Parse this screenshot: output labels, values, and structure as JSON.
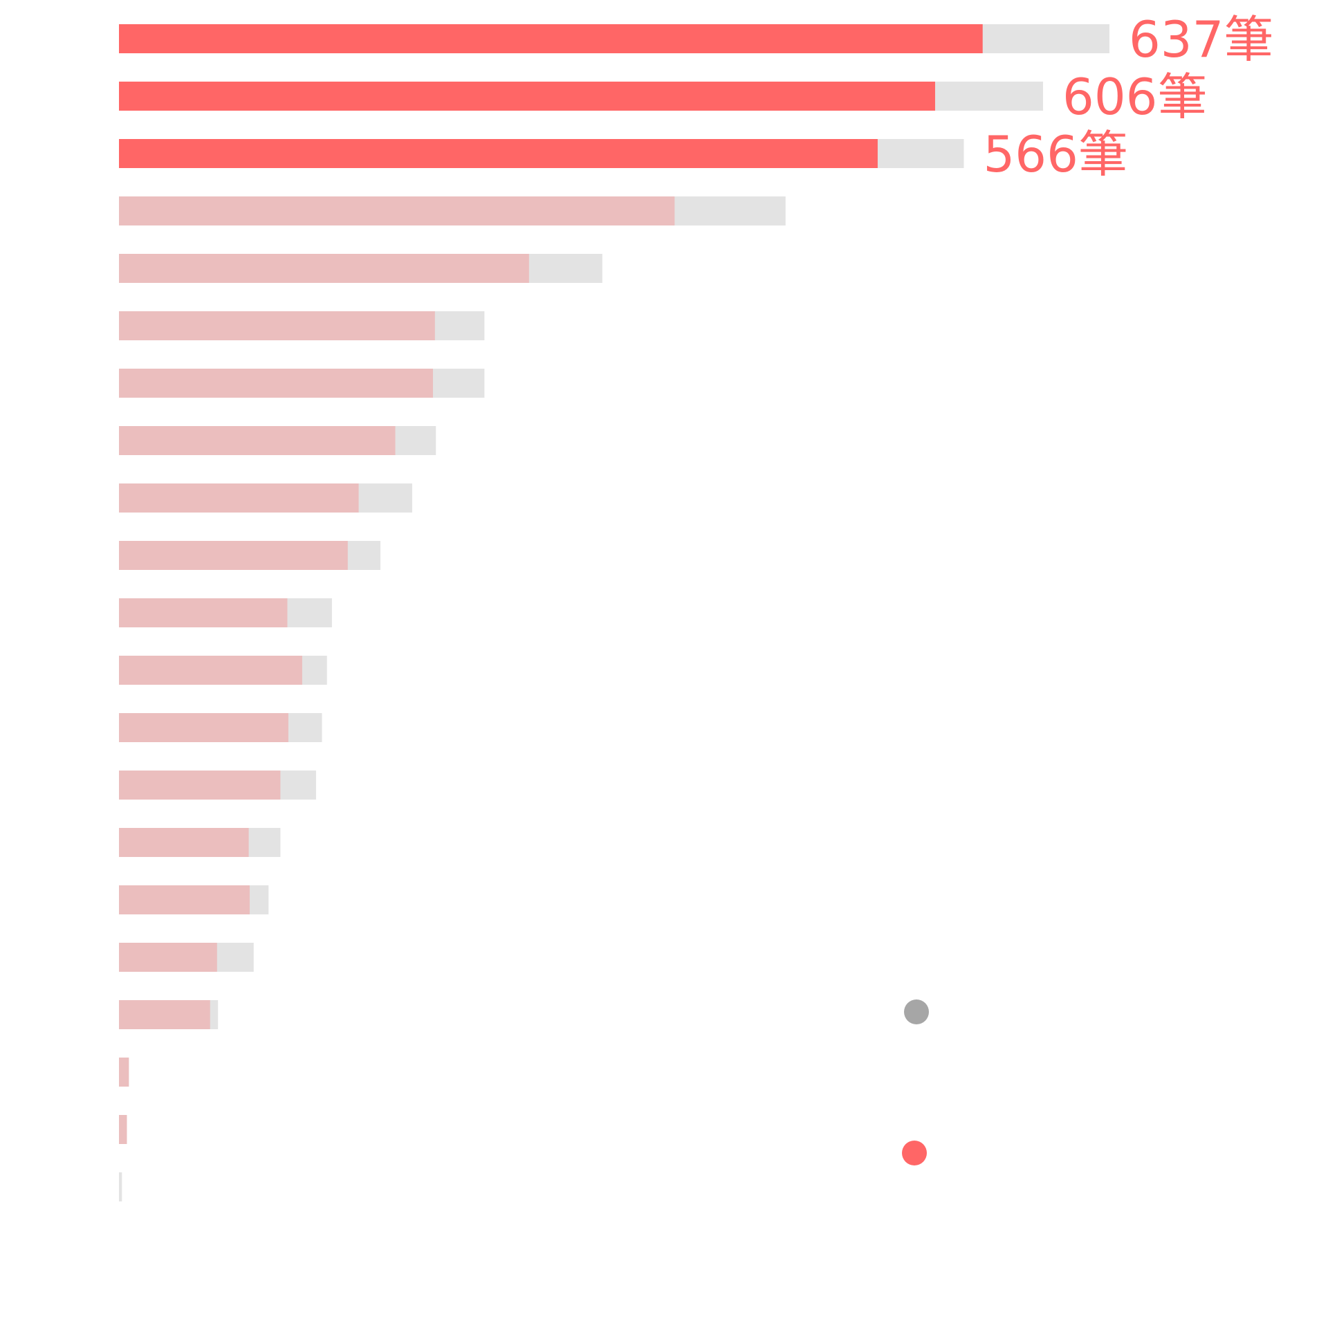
{
  "chart_data": {
    "type": "bar",
    "orientation": "horizontal",
    "stacked_overlay": true,
    "xlim": [
      0,
      1000
    ],
    "grid": false,
    "categories": [
      "",
      "",
      "",
      "",
      "",
      "",
      "",
      "",
      "",
      "",
      "",
      "",
      "",
      "",
      "",
      "",
      "",
      "",
      "",
      "",
      ""
    ],
    "series": [
      {
        "color": "#e3e3e3",
        "values": [
          1000,
          933,
          853,
          673,
          488,
          369,
          369,
          320,
          296,
          264,
          215,
          210,
          205,
          199,
          163,
          151,
          136,
          100,
          10,
          8,
          3
        ]
      },
      {
        "colors": [
          "#ff6666",
          "#ff6666",
          "#ff6666",
          "#ebbebe",
          "#ebbebe",
          "#ebbebe",
          "#ebbebe",
          "#ebbebe",
          "#ebbebe",
          "#ebbebe",
          "#ebbebe",
          "#ebbebe",
          "#ebbebe",
          "#ebbebe",
          "#ebbebe",
          "#ebbebe",
          "#ebbebe",
          "#ebbebe",
          "#ebbebe",
          "#ebbebe",
          "#ebbebe"
        ],
        "values": [
          872,
          824,
          766,
          561,
          414,
          319,
          317,
          279,
          242,
          231,
          170,
          185,
          171,
          163,
          131,
          132,
          99,
          92,
          10,
          8,
          0
        ]
      }
    ],
    "data_labels": [
      "637筆",
      "606筆",
      "566筆"
    ],
    "data_label_color": "#ff6666",
    "legend_markers": [
      {
        "color": "#a6a6a6"
      },
      {
        "color": "#ff6666"
      }
    ]
  }
}
